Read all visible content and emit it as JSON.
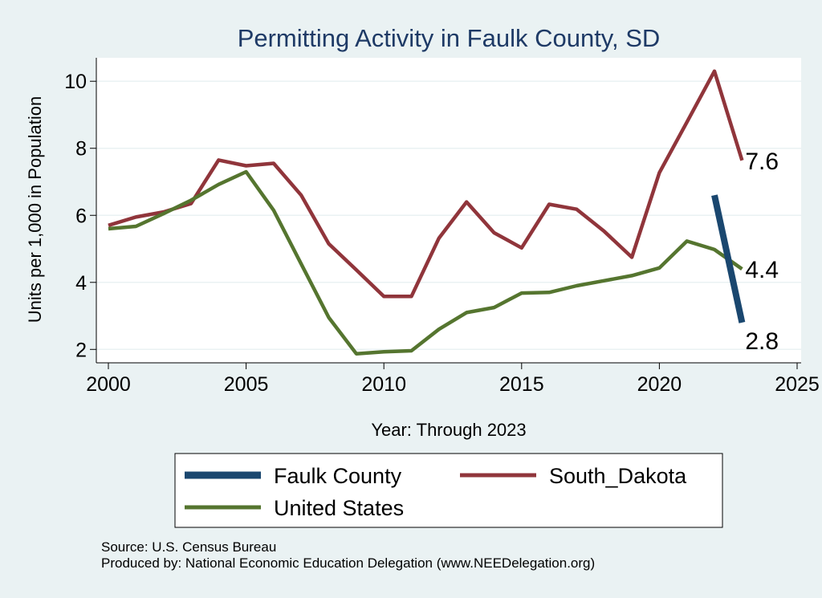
{
  "chart_data": {
    "type": "line",
    "title": "Permitting Activity in Faulk County, SD",
    "xlabel": "Year: Through 2023",
    "ylabel": "Units per 1,000 in Population",
    "xlim": [
      2000,
      2025
    ],
    "ylim": [
      1.6,
      10.7
    ],
    "x_ticks": [
      2000,
      2005,
      2010,
      2015,
      2020,
      2025
    ],
    "y_ticks": [
      2,
      4,
      6,
      8,
      10
    ],
    "grid": true,
    "legend_position": "bottom",
    "series": [
      {
        "name": "Faulk County",
        "color": "#1a476f",
        "x": [
          2022,
          2023
        ],
        "values": [
          6.6,
          2.8
        ],
        "end_label": "2.8"
      },
      {
        "name": "South_Dakota",
        "color": "#90353b",
        "x": [
          2000,
          2001,
          2002,
          2003,
          2004,
          2005,
          2006,
          2007,
          2008,
          2009,
          2010,
          2011,
          2012,
          2013,
          2014,
          2015,
          2016,
          2017,
          2018,
          2019,
          2020,
          2021,
          2022,
          2023
        ],
        "values": [
          5.7,
          5.95,
          6.1,
          6.35,
          7.65,
          7.48,
          7.55,
          6.6,
          5.15,
          4.37,
          3.58,
          3.58,
          5.32,
          6.4,
          5.48,
          5.03,
          6.33,
          6.18,
          5.52,
          4.75,
          7.27,
          8.78,
          10.3,
          7.64
        ],
        "end_label": "7.6"
      },
      {
        "name": "United States",
        "color": "#55752f",
        "x": [
          2000,
          2001,
          2002,
          2003,
          2004,
          2005,
          2006,
          2007,
          2008,
          2009,
          2010,
          2011,
          2012,
          2013,
          2014,
          2015,
          2016,
          2017,
          2018,
          2019,
          2020,
          2021,
          2022,
          2023
        ],
        "values": [
          5.6,
          5.67,
          6.05,
          6.45,
          6.92,
          7.3,
          6.15,
          4.55,
          2.95,
          1.87,
          1.93,
          1.96,
          2.6,
          3.1,
          3.25,
          3.68,
          3.7,
          3.9,
          4.05,
          4.2,
          4.43,
          5.23,
          4.98,
          4.4
        ],
        "end_label": "4.4"
      }
    ]
  },
  "legend": {
    "items": [
      "Faulk County",
      "South_Dakota",
      "United States"
    ]
  },
  "footer": {
    "source": "Source: U.S. Census Bureau",
    "produced_by": "Produced by: National Economic Education Delegation (www.NEEDelegation.org)"
  }
}
